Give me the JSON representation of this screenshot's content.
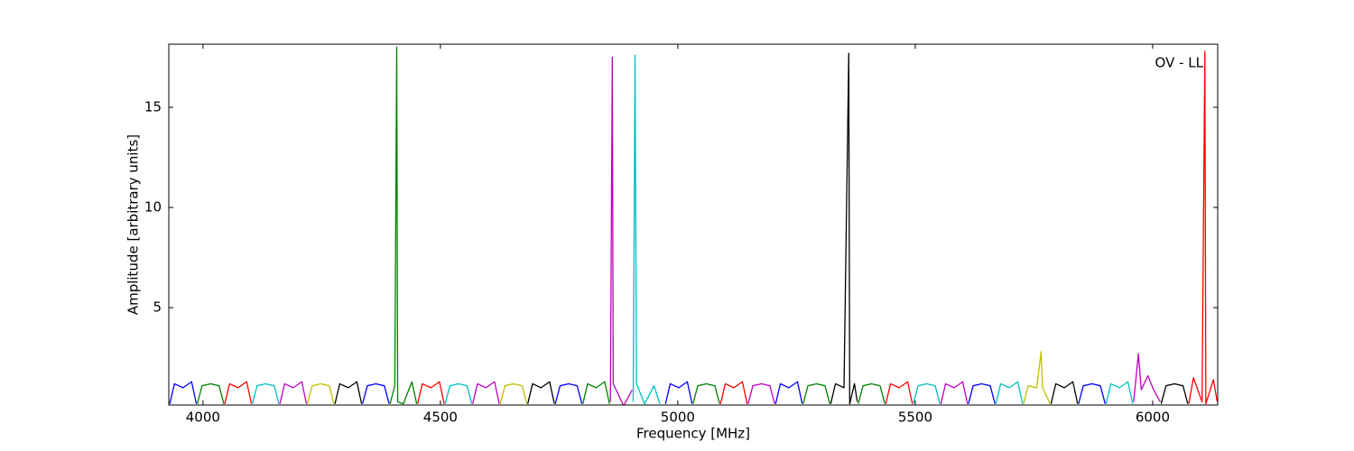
{
  "chart_data": {
    "type": "line",
    "xlabel": "Frequency [MHz]",
    "ylabel": "Amplitude [arbitrary units]",
    "annotation": "OV - LL",
    "xlim": [
      3928,
      6137
    ],
    "ylim": [
      0.14,
      18.15
    ],
    "xticks": [
      4000,
      4500,
      5000,
      5500,
      6000
    ],
    "yticks": [
      5,
      10,
      15
    ],
    "grid": false,
    "series": [
      {
        "color": "#0000ff",
        "x": [
          3930,
          3940,
          3958,
          3976,
          3986
        ],
        "values": [
          0.2,
          1.2,
          1.0,
          1.3,
          0.2
        ]
      },
      {
        "color": "#008000",
        "x": [
          3988,
          3998,
          4016,
          4034,
          4044
        ],
        "values": [
          0.2,
          1.1,
          1.2,
          1.1,
          0.2
        ]
      },
      {
        "color": "#ff0000",
        "x": [
          4046,
          4056,
          4074,
          4092,
          4102
        ],
        "values": [
          0.2,
          1.2,
          1.0,
          1.3,
          0.2
        ]
      },
      {
        "color": "#00bfbf",
        "x": [
          4104,
          4114,
          4132,
          4150,
          4160
        ],
        "values": [
          0.2,
          1.1,
          1.2,
          1.1,
          0.2
        ]
      },
      {
        "color": "#bf00bf",
        "x": [
          4162,
          4172,
          4190,
          4208,
          4218
        ],
        "values": [
          0.2,
          1.2,
          1.0,
          1.3,
          0.2
        ]
      },
      {
        "color": "#bfbf00",
        "x": [
          4220,
          4230,
          4248,
          4266,
          4276
        ],
        "values": [
          0.2,
          1.1,
          1.2,
          1.1,
          0.2
        ]
      },
      {
        "color": "#000000",
        "x": [
          4278,
          4288,
          4306,
          4324,
          4334
        ],
        "values": [
          0.2,
          1.2,
          1.0,
          1.3,
          0.2
        ]
      },
      {
        "color": "#0000ff",
        "x": [
          4336,
          4346,
          4364,
          4382,
          4392
        ],
        "values": [
          0.2,
          1.1,
          1.2,
          1.1,
          0.2
        ]
      },
      {
        "color": "#008000",
        "x": [
          4394,
          4404,
          4408,
          4410,
          4422,
          4440,
          4450
        ],
        "values": [
          0.2,
          1.1,
          18,
          0.3,
          0.2,
          1.3,
          0.2
        ]
      },
      {
        "color": "#ff0000",
        "x": [
          4452,
          4462,
          4480,
          4498,
          4508
        ],
        "values": [
          0.2,
          1.2,
          1.0,
          1.3,
          0.2
        ]
      },
      {
        "color": "#00bfbf",
        "x": [
          4510,
          4520,
          4538,
          4556,
          4566
        ],
        "values": [
          0.2,
          1.1,
          1.2,
          1.1,
          0.2
        ]
      },
      {
        "color": "#bf00bf",
        "x": [
          4568,
          4578,
          4596,
          4614,
          4624
        ],
        "values": [
          0.2,
          1.2,
          1.0,
          1.3,
          0.2
        ]
      },
      {
        "color": "#bfbf00",
        "x": [
          4626,
          4636,
          4654,
          4672,
          4682
        ],
        "values": [
          0.2,
          1.1,
          1.2,
          1.1,
          0.2
        ]
      },
      {
        "color": "#000000",
        "x": [
          4684,
          4694,
          4712,
          4730,
          4740
        ],
        "values": [
          0.2,
          1.2,
          1.0,
          1.3,
          0.2
        ]
      },
      {
        "color": "#0000ff",
        "x": [
          4742,
          4752,
          4770,
          4788,
          4798
        ],
        "values": [
          0.2,
          1.1,
          1.2,
          1.1,
          0.2
        ]
      },
      {
        "color": "#008000",
        "x": [
          4800,
          4810,
          4828,
          4846,
          4856
        ],
        "values": [
          0.2,
          1.2,
          1.0,
          1.3,
          0.2
        ]
      },
      {
        "color": "#bf00bf",
        "x": [
          4858,
          4862,
          4864,
          4886,
          4904
        ],
        "values": [
          0.3,
          17.5,
          1.2,
          0.1,
          0.9
        ]
      },
      {
        "color": "#00bfbf",
        "x": [
          4906,
          4910,
          4913,
          4930,
          4950,
          4962
        ],
        "values": [
          0.3,
          17.6,
          1.2,
          0.2,
          1.1,
          0.2
        ]
      },
      {
        "color": "#0000ff",
        "x": [
          4974,
          4984,
          5002,
          5020,
          5030
        ],
        "values": [
          0.2,
          1.2,
          1.0,
          1.3,
          0.2
        ]
      },
      {
        "color": "#008000",
        "x": [
          5032,
          5042,
          5060,
          5078,
          5088
        ],
        "values": [
          0.2,
          1.1,
          1.2,
          1.1,
          0.2
        ]
      },
      {
        "color": "#ff0000",
        "x": [
          5090,
          5100,
          5118,
          5136,
          5146
        ],
        "values": [
          0.2,
          1.2,
          1.0,
          1.3,
          0.2
        ]
      },
      {
        "color": "#bf00bf",
        "x": [
          5148,
          5158,
          5176,
          5194,
          5204
        ],
        "values": [
          0.2,
          1.1,
          1.2,
          1.1,
          0.2
        ]
      },
      {
        "color": "#0000ff",
        "x": [
          5206,
          5216,
          5234,
          5252,
          5262
        ],
        "values": [
          0.2,
          1.2,
          1.0,
          1.3,
          0.2
        ]
      },
      {
        "color": "#008000",
        "x": [
          5264,
          5274,
          5292,
          5310,
          5320
        ],
        "values": [
          0.2,
          1.1,
          1.2,
          1.1,
          0.2
        ]
      },
      {
        "color": "#000000",
        "x": [
          5322,
          5332,
          5350,
          5360,
          5362,
          5372,
          5378
        ],
        "values": [
          0.2,
          1.2,
          1.0,
          17.7,
          0.2,
          1.2,
          0.3
        ]
      },
      {
        "color": "#008000",
        "x": [
          5380,
          5390,
          5408,
          5426,
          5436
        ],
        "values": [
          0.2,
          1.1,
          1.2,
          1.1,
          0.2
        ]
      },
      {
        "color": "#ff0000",
        "x": [
          5438,
          5448,
          5466,
          5484,
          5494
        ],
        "values": [
          0.2,
          1.2,
          1.0,
          1.3,
          0.2
        ]
      },
      {
        "color": "#00bfbf",
        "x": [
          5496,
          5506,
          5524,
          5542,
          5552
        ],
        "values": [
          0.2,
          1.1,
          1.2,
          1.1,
          0.2
        ]
      },
      {
        "color": "#bf00bf",
        "x": [
          5554,
          5564,
          5582,
          5600,
          5610
        ],
        "values": [
          0.2,
          1.2,
          1.0,
          1.3,
          0.2
        ]
      },
      {
        "color": "#0000ff",
        "x": [
          5612,
          5622,
          5640,
          5658,
          5668
        ],
        "values": [
          0.2,
          1.1,
          1.2,
          1.1,
          0.2
        ]
      },
      {
        "color": "#00bfbf",
        "x": [
          5670,
          5680,
          5698,
          5716,
          5726
        ],
        "values": [
          0.2,
          1.2,
          1.0,
          1.3,
          0.2
        ]
      },
      {
        "color": "#bfbf00",
        "x": [
          5728,
          5738,
          5756,
          5765,
          5768,
          5784
        ],
        "values": [
          0.2,
          1.1,
          1.0,
          2.8,
          1.0,
          0.2
        ]
      },
      {
        "color": "#000000",
        "x": [
          5786,
          5796,
          5814,
          5832,
          5842
        ],
        "values": [
          0.2,
          1.2,
          1.0,
          1.3,
          0.2
        ]
      },
      {
        "color": "#0000ff",
        "x": [
          5844,
          5854,
          5872,
          5890,
          5900
        ],
        "values": [
          0.2,
          1.1,
          1.2,
          1.1,
          0.2
        ]
      },
      {
        "color": "#00bfbf",
        "x": [
          5902,
          5912,
          5930,
          5948,
          5958
        ],
        "values": [
          0.2,
          1.2,
          1.0,
          1.3,
          0.2
        ]
      },
      {
        "color": "#bf00bf",
        "x": [
          5960,
          5970,
          5976,
          5990,
          6002,
          6016
        ],
        "values": [
          0.3,
          2.7,
          0.9,
          1.6,
          0.9,
          0.3
        ]
      },
      {
        "color": "#000000",
        "x": [
          6018,
          6028,
          6046,
          6064,
          6074
        ],
        "values": [
          0.2,
          1.1,
          1.2,
          1.1,
          0.2
        ]
      },
      {
        "color": "#ff0000",
        "x": [
          6076,
          6086,
          6104,
          6110,
          6112,
          6128,
          6136
        ],
        "values": [
          0.2,
          1.5,
          0.3,
          17.8,
          0.2,
          1.4,
          0.3
        ]
      }
    ]
  }
}
